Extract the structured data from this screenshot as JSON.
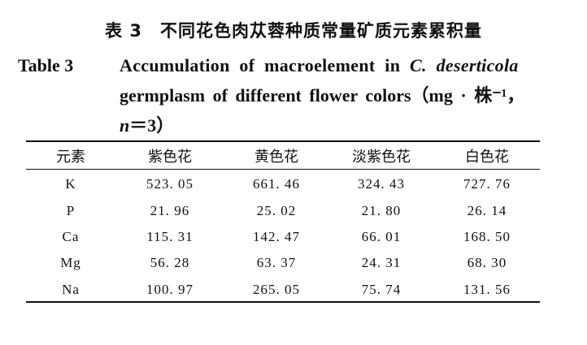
{
  "title_zh": {
    "number": "表 3",
    "text": "不同花色肉苁蓉种质常量矿质元素累积量"
  },
  "title_en": {
    "label": "Table 3",
    "line1_before": "Accumulation of macroelement in ",
    "line1_italic": "C. deserticola",
    "line2": "germplasm of different flower colors（mg · 株⁻¹，",
    "line3_italic": "n",
    "line3_rest": "＝3）"
  },
  "table": {
    "headers": [
      "元素",
      "紫色花",
      "黄色花",
      "淡紫色花",
      "白色花"
    ],
    "rows": [
      [
        "K",
        "523. 05",
        "661. 46",
        "324. 43",
        "727. 76"
      ],
      [
        "P",
        "21. 96",
        "25. 02",
        "21. 80",
        "26. 14"
      ],
      [
        "Ca",
        "115. 31",
        "142. 47",
        "66. 01",
        "168. 50"
      ],
      [
        "Mg",
        "56. 28",
        "63. 37",
        "24. 31",
        "68. 30"
      ],
      [
        "Na",
        "100. 97",
        "265. 05",
        "75. 74",
        "131. 56"
      ]
    ]
  }
}
